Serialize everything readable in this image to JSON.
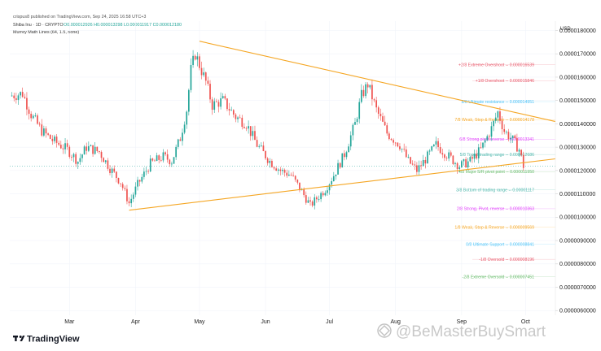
{
  "header": {
    "published": "crispus8 published on TradingView.com, Sep 24, 2025 16:58 UTC+3",
    "symbol": "Shiba Inu · 1D · CRYPTO",
    "ohlc": "O0.000012926 H0.000013298 L0.000011917 C0.000012180",
    "indicator": "Murrey Math Lines (64, 1.5, none)"
  },
  "brand": {
    "logo_text": "TradingView",
    "watermark": "@BeMasterBuySmart"
  },
  "colors": {
    "up": "#26a69a",
    "down": "#ef5350",
    "trendline": "#f5a623",
    "ml_extreme": "#e8586a",
    "ml_ultimate": "#4fc3f7",
    "ml_weak": "#f5a623",
    "ml_strong": "#e040fb",
    "ml_major": "#66bb6a",
    "ml_top_bottom": "#4db6ac"
  },
  "chart_data": {
    "type": "candlestick",
    "yunit": "USD",
    "ylim": [
      5.8e-06,
      1.84e-05
    ],
    "y_ticks": [
      "0.0000180000",
      "0.0000170000",
      "0.0000160000",
      "0.0000150000",
      "0.0000140000",
      "0.0000130000",
      "0.0000120000",
      "0.0000110000",
      "0.0000100000",
      "0.0000090000",
      "0.0000080000",
      "0.0000070000",
      "0.0000060000"
    ],
    "y_tick_values": [
      1.8e-05,
      1.7e-05,
      1.6e-05,
      1.5e-05,
      1.4e-05,
      1.3e-05,
      1.2e-05,
      1.1e-05,
      1e-05,
      9e-06,
      8e-06,
      7e-06,
      6e-06
    ],
    "x_ticks": [
      "Mar",
      "Apr",
      "May",
      "Jun",
      "Jul",
      "Aug",
      "Sep",
      "Oct"
    ],
    "x_tick_days": [
      28,
      59,
      89,
      120,
      150,
      181,
      212,
      242
    ],
    "x_range_days": [
      0,
      256
    ],
    "last_price": 1.218e-05,
    "price_path": [
      [
        0,
        1.52e-05
      ],
      [
        6,
        1.53e-05
      ],
      [
        10,
        1.44e-05
      ],
      [
        15,
        1.37e-05
      ],
      [
        20,
        1.33e-05
      ],
      [
        27,
        1.29e-05
      ],
      [
        32,
        1.24e-05
      ],
      [
        36,
        1.3e-05
      ],
      [
        42,
        1.28e-05
      ],
      [
        47,
        1.21e-05
      ],
      [
        52,
        1.15e-05
      ],
      [
        56,
        1.06e-05
      ],
      [
        60,
        1.14e-05
      ],
      [
        66,
        1.23e-05
      ],
      [
        72,
        1.26e-05
      ],
      [
        76,
        1.24e-05
      ],
      [
        80,
        1.34e-05
      ],
      [
        83,
        1.46e-05
      ],
      [
        85,
        1.63e-05
      ],
      [
        87,
        1.7e-05
      ],
      [
        92,
        1.58e-05
      ],
      [
        95,
        1.48e-05
      ],
      [
        100,
        1.5e-05
      ],
      [
        106,
        1.43e-05
      ],
      [
        111,
        1.4e-05
      ],
      [
        116,
        1.31e-05
      ],
      [
        122,
        1.24e-05
      ],
      [
        127,
        1.2e-05
      ],
      [
        132,
        1.18e-05
      ],
      [
        137,
        1.11e-05
      ],
      [
        141,
        1.05e-05
      ],
      [
        144,
        1.08e-05
      ],
      [
        148,
        1.12e-05
      ],
      [
        152,
        1.18e-05
      ],
      [
        157,
        1.27e-05
      ],
      [
        162,
        1.4e-05
      ],
      [
        165,
        1.52e-05
      ],
      [
        168,
        1.57e-05
      ],
      [
        172,
        1.46e-05
      ],
      [
        177,
        1.36e-05
      ],
      [
        183,
        1.31e-05
      ],
      [
        187,
        1.24e-05
      ],
      [
        191,
        1.2e-05
      ],
      [
        196,
        1.26e-05
      ],
      [
        200,
        1.31e-05
      ],
      [
        206,
        1.26e-05
      ],
      [
        211,
        1.22e-05
      ],
      [
        216,
        1.24e-05
      ],
      [
        221,
        1.29e-05
      ],
      [
        226,
        1.38e-05
      ],
      [
        229,
        1.45e-05
      ],
      [
        232,
        1.37e-05
      ],
      [
        236,
        1.33e-05
      ],
      [
        239,
        1.29e-05
      ],
      [
        241,
        1.22e-05
      ]
    ],
    "trendlines": [
      {
        "name": "upper",
        "points": [
          [
            89,
            1.754e-05
          ],
          [
            256,
            1.41e-05
          ]
        ]
      },
      {
        "name": "lower",
        "points": [
          [
            56,
            1.03e-05
          ],
          [
            256,
            1.25e-05
          ]
        ]
      }
    ],
    "murrey_lines": [
      {
        "label": "+2/8 Extreme Overshoot -- 0.000016539",
        "value": 1.6539e-05,
        "style": "ml_extreme"
      },
      {
        "label": "+1/8 Overshoot -- 0.000015846",
        "value": 1.5846e-05,
        "style": "ml_extreme"
      },
      {
        "label": "8/8 Ultimate resistance -- 0.000014951",
        "value": 1.4951e-05,
        "style": "ml_ultimate"
      },
      {
        "label": "7/8 Weak, Stop & Reverse -- 0.000014178",
        "value": 1.4178e-05,
        "style": "ml_weak"
      },
      {
        "label": "6/8 Strong pivot reverse -- 0.000013341",
        "value": 1.3341e-05,
        "style": "ml_strong"
      },
      {
        "label": "5/8 Top of trading range -- 0.000012686",
        "value": 1.2686e-05,
        "style": "ml_top_bottom"
      },
      {
        "label": "4/8 Major S/R pivot point -- 0.000011950",
        "value": 1.195e-05,
        "style": "ml_major"
      },
      {
        "label": "3/8 Bottom of trading range -- 0.00001117",
        "value": 1.117e-05,
        "style": "ml_top_bottom"
      },
      {
        "label": "2/8 Strong, Pivot, reverse -- 0.000010363",
        "value": 1.0363e-05,
        "style": "ml_strong"
      },
      {
        "label": "1/8 Weak, Stop & Reverse -- 0.000009569",
        "value": 9.569e-06,
        "style": "ml_weak"
      },
      {
        "label": "0/8 Ultimate Support -- 0.000008841",
        "value": 8.841e-06,
        "style": "ml_ultimate"
      },
      {
        "label": "-1/8 Oversold -- 0.000008196",
        "value": 8.196e-06,
        "style": "ml_extreme"
      },
      {
        "label": "-2/8 Extreme Oversold -- 0.000007451",
        "value": 7.451e-06,
        "style": "ml_major"
      }
    ]
  }
}
